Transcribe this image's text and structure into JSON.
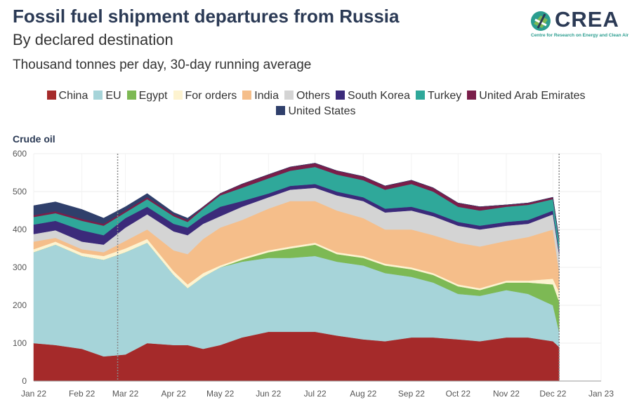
{
  "header": {
    "title": "Fossil fuel shipment departures from Russia",
    "subtitle": "By declared destination",
    "unit": "Thousand tonnes per day, 30-day running average"
  },
  "logo": {
    "name": "CREA",
    "tagline": "Centre for Research on Energy and Clean Air"
  },
  "chart_data": {
    "type": "area",
    "stacked": true,
    "title": "Crude oil",
    "ylim": [
      0,
      600
    ],
    "y_ticks": [
      0,
      100,
      200,
      300,
      400,
      500,
      600
    ],
    "x_ticks": [
      "Jan 22",
      "Feb 22",
      "Mar 22",
      "Apr 22",
      "May 22",
      "Jun 22",
      "Jul 22",
      "Aug 22",
      "Sep 22",
      "Oct 22",
      "Nov 22",
      "Dec 22",
      "Jan 23"
    ],
    "vertical_markers": [
      "2022-02-24",
      "2022-12-05"
    ],
    "grid": true,
    "legend_position": "top",
    "x": [
      "2022-01-01",
      "2022-01-15",
      "2022-02-01",
      "2022-02-15",
      "2022-03-01",
      "2022-03-15",
      "2022-04-01",
      "2022-04-10",
      "2022-04-20",
      "2022-05-01",
      "2022-05-15",
      "2022-06-01",
      "2022-06-15",
      "2022-07-01",
      "2022-07-15",
      "2022-08-01",
      "2022-08-15",
      "2022-09-01",
      "2022-09-15",
      "2022-10-01",
      "2022-10-15",
      "2022-11-01",
      "2022-11-15",
      "2022-12-01",
      "2022-12-05"
    ],
    "series": [
      {
        "name": "China",
        "color": "#a52a2a",
        "values": [
          100,
          95,
          85,
          65,
          70,
          100,
          95,
          95,
          85,
          95,
          115,
          130,
          130,
          130,
          120,
          110,
          105,
          115,
          115,
          110,
          105,
          115,
          115,
          105,
          90
        ]
      },
      {
        "name": "EU",
        "color": "#a6d4d9",
        "values": [
          240,
          265,
          245,
          255,
          270,
          265,
          185,
          150,
          190,
          205,
          200,
          195,
          195,
          200,
          195,
          195,
          180,
          160,
          145,
          120,
          120,
          125,
          115,
          95,
          40
        ]
      },
      {
        "name": "Egypt",
        "color": "#7db954",
        "values": [
          0,
          0,
          0,
          0,
          0,
          0,
          0,
          0,
          0,
          0,
          5,
          15,
          25,
          30,
          20,
          20,
          20,
          20,
          20,
          20,
          15,
          20,
          30,
          55,
          80
        ]
      },
      {
        "name": "For orders",
        "color": "#fdf3d0",
        "values": [
          8,
          8,
          8,
          10,
          10,
          10,
          10,
          10,
          10,
          5,
          5,
          5,
          5,
          5,
          5,
          5,
          5,
          5,
          5,
          5,
          5,
          5,
          5,
          15,
          25
        ]
      },
      {
        "name": "India",
        "color": "#f5be8a",
        "values": [
          20,
          10,
          10,
          10,
          20,
          25,
          55,
          80,
          90,
          100,
          100,
          110,
          120,
          110,
          110,
          100,
          90,
          100,
          100,
          110,
          110,
          105,
          115,
          130,
          55
        ]
      },
      {
        "name": "Others",
        "color": "#d4d4d4",
        "values": [
          20,
          20,
          20,
          20,
          35,
          40,
          50,
          50,
          40,
          30,
          35,
          30,
          30,
          35,
          40,
          45,
          45,
          50,
          50,
          45,
          45,
          40,
          35,
          40,
          45
        ]
      },
      {
        "name": "South Korea",
        "color": "#3b2a7a",
        "values": [
          25,
          25,
          30,
          25,
          25,
          20,
          20,
          20,
          20,
          25,
          15,
          10,
          10,
          10,
          10,
          10,
          10,
          10,
          10,
          10,
          10,
          10,
          10,
          10,
          10
        ]
      },
      {
        "name": "Turkey",
        "color": "#2fa89a",
        "values": [
          20,
          20,
          25,
          25,
          15,
          20,
          20,
          15,
          20,
          30,
          35,
          40,
          40,
          45,
          45,
          45,
          50,
          60,
          55,
          40,
          40,
          40,
          40,
          30,
          25
        ]
      },
      {
        "name": "United Arab Emirates",
        "color": "#7a1e4a",
        "values": [
          5,
          5,
          5,
          5,
          5,
          5,
          5,
          5,
          5,
          5,
          10,
          10,
          10,
          10,
          10,
          10,
          10,
          10,
          10,
          10,
          10,
          5,
          5,
          5,
          5
        ]
      },
      {
        "name": "United States",
        "color": "#2f3f6b",
        "values": [
          25,
          25,
          25,
          15,
          10,
          10,
          5,
          5,
          0,
          0,
          0,
          0,
          0,
          0,
          0,
          0,
          0,
          0,
          0,
          0,
          0,
          0,
          0,
          0,
          0
        ]
      }
    ]
  }
}
